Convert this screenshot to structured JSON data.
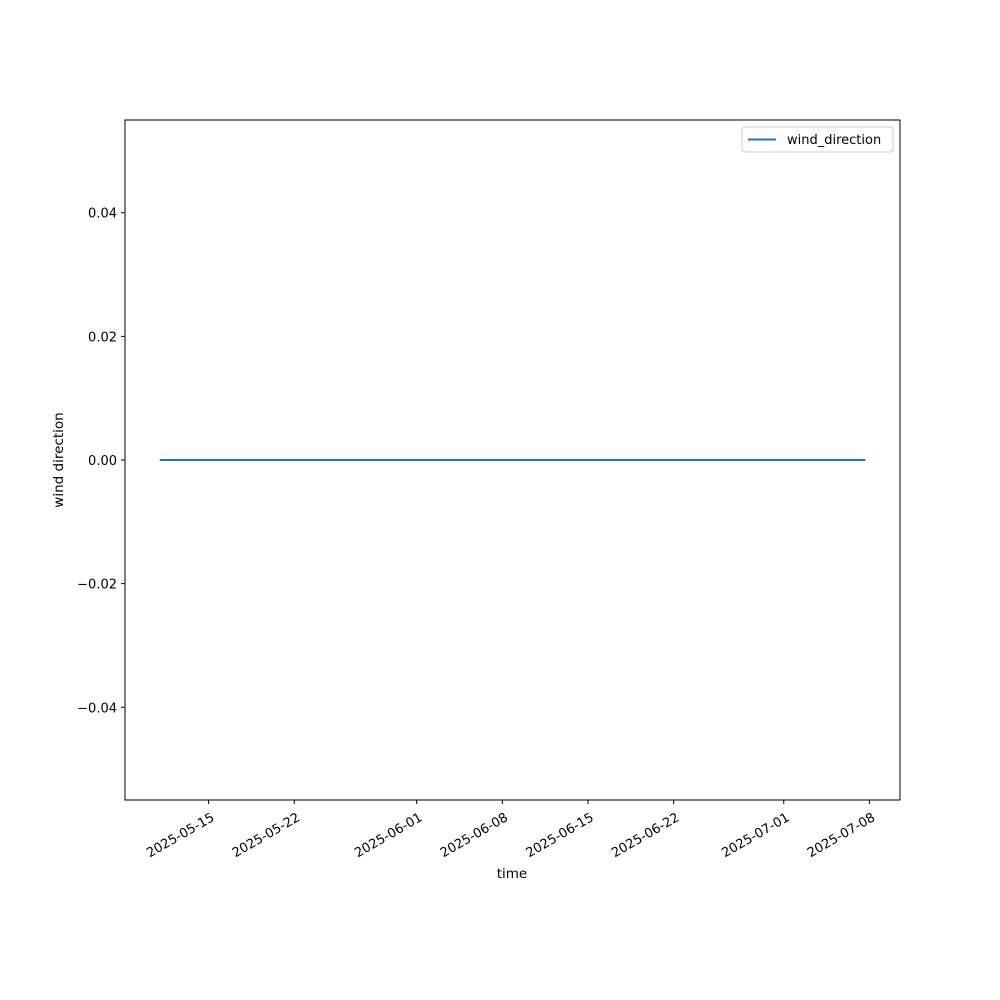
{
  "chart_data": {
    "type": "line",
    "title": "",
    "xlabel": "time",
    "ylabel": "wind direction",
    "xlim": [
      "2025-05-08T04:00",
      "2025-07-10T12:00"
    ],
    "ylim": [
      -0.055,
      0.055
    ],
    "grid": false,
    "legend_placement": "top-right",
    "x_ticks": [
      "2025-05-15",
      "2025-05-22",
      "2025-06-01",
      "2025-06-08",
      "2025-06-15",
      "2025-06-22",
      "2025-07-01",
      "2025-07-08"
    ],
    "y_ticks": [
      0.04,
      0.02,
      0.0,
      -0.02,
      -0.04
    ],
    "y_tick_labels": [
      "0.04",
      "0.02",
      "0.00",
      "−0.02",
      "−0.04"
    ],
    "series": [
      {
        "name": "wind_direction",
        "color": "#1f77b4",
        "x": [
          "2025-05-11T00:00",
          "2025-07-07T16:00"
        ],
        "y": [
          0,
          0
        ]
      }
    ]
  }
}
